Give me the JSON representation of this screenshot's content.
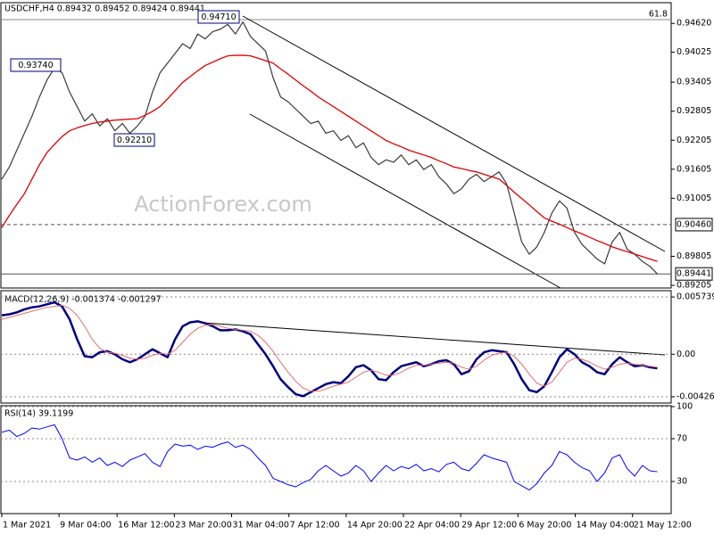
{
  "chart_data": [
    {
      "type": "line",
      "title": "USDCHF,H4  0.89432 0.89452 0.89424 0.89441",
      "annotations": [
        "0.94710",
        "0.93740",
        "0.92210",
        "61.8",
        "ActionForex.com"
      ],
      "xlim": [
        0,
        88
      ],
      "ylim": [
        0.8915,
        0.9503
      ],
      "yticks": [
        {
          "value": 0.9462,
          "label": "0.94620"
        },
        0.94025,
        0.93405,
        0.92805,
        0.92205,
        0.91605,
        0.91005,
        0.89805,
        0.89205
      ],
      "hlines": [
        {
          "value": 0.9046,
          "label": "0.90460",
          "style": "dashed"
        },
        {
          "value": 0.89441,
          "label": "0.89441",
          "style": "solid"
        }
      ],
      "series": [
        {
          "color": "#3a3a3a",
          "values": [
            0.914,
            0.9165,
            0.92,
            0.9235,
            0.927,
            0.931,
            0.9345,
            0.937,
            0.936,
            0.932,
            0.929,
            0.926,
            0.9275,
            0.925,
            0.9265,
            0.924,
            0.9255,
            0.9235,
            0.925,
            0.927,
            0.932,
            0.936,
            0.938,
            0.94,
            0.942,
            0.941,
            0.944,
            0.943,
            0.9445,
            0.945,
            0.946,
            0.944,
            0.9465,
            0.9435,
            0.942,
            0.9405,
            0.935,
            0.931,
            0.93,
            0.9285,
            0.927,
            0.9255,
            0.926,
            0.9235,
            0.924,
            0.922,
            0.923,
            0.9205,
            0.9215,
            0.9185,
            0.917,
            0.918,
            0.9175,
            0.919,
            0.917,
            0.918,
            0.916,
            0.917,
            0.9145,
            0.913,
            0.911,
            0.912,
            0.914,
            0.915,
            0.9135,
            0.9145,
            0.9155,
            0.913,
            0.907,
            0.901,
            0.8985,
            0.9,
            0.903,
            0.907,
            0.9095,
            0.908,
            0.903,
            0.9005,
            0.899,
            0.8975,
            0.8965,
            0.901,
            0.903,
            0.8995,
            0.8985,
            0.897,
            0.896,
            0.8944
          ]
        },
        {
          "color": "#e00000",
          "values": [
            0.904,
            0.9065,
            0.9088,
            0.911,
            0.914,
            0.917,
            0.9195,
            0.9212,
            0.9228,
            0.924,
            0.9246,
            0.9251,
            0.9255,
            0.9258,
            0.926,
            0.9262,
            0.9263,
            0.9264,
            0.9265,
            0.9272,
            0.928,
            0.929,
            0.9306,
            0.9323,
            0.934,
            0.9352,
            0.9364,
            0.9375,
            0.9382,
            0.9389,
            0.9395,
            0.9396,
            0.9396,
            0.9395,
            0.939,
            0.9385,
            0.938,
            0.9368,
            0.9357,
            0.9345,
            0.9333,
            0.9322,
            0.931,
            0.93,
            0.929,
            0.928,
            0.927,
            0.926,
            0.925,
            0.924,
            0.923,
            0.922,
            0.9213,
            0.9207,
            0.92,
            0.9195,
            0.919,
            0.9185,
            0.9178,
            0.9172,
            0.9165,
            0.9162,
            0.9158,
            0.9155,
            0.915,
            0.9145,
            0.914,
            0.9127,
            0.9113,
            0.91,
            0.9087,
            0.9073,
            0.906,
            0.9053,
            0.9047,
            0.904,
            0.9033,
            0.9027,
            0.902,
            0.9013,
            0.9007,
            0.9,
            0.8995,
            0.899,
            0.8985,
            0.898,
            0.8975,
            0.897
          ]
        }
      ]
    },
    {
      "type": "line",
      "title": "MACD(12,26,9) -0.001374 -0.001297",
      "grid": true,
      "xlim": [
        0,
        88
      ],
      "ylim": [
        -0.00489,
        0.00637
      ],
      "yticks": [
        0.005739,
        {
          "value": 0,
          "label": "0.00"
        },
        -0.004261
      ],
      "series": [
        {
          "color": "#000080",
          "values": [
            0.0039,
            0.004,
            0.0042,
            0.0045,
            0.0047,
            0.0048,
            0.005,
            0.0052,
            0.0048,
            0.0035,
            0.0015,
            -0.0002,
            -0.0003,
            0.0002,
            0.0003,
            0,
            -0.0005,
            -0.0008,
            -0.0005,
            0,
            0.0005,
            0.0001,
            -0.0003,
            0.0015,
            0.0028,
            0.0032,
            0.0033,
            0.0031,
            0.0028,
            0.0024,
            0.0024,
            0.0025,
            0.0023,
            0.002,
            0.001,
            0,
            -0.0012,
            -0.0025,
            -0.0033,
            -0.004,
            -0.0042,
            -0.0038,
            -0.0034,
            -0.003,
            -0.0028,
            -0.0029,
            -0.0022,
            -0.0013,
            -0.0011,
            -0.0016,
            -0.0025,
            -0.0026,
            -0.0018,
            -0.0012,
            -0.001,
            -0.0008,
            -0.0012,
            -0.001,
            -0.0007,
            -0.0006,
            -0.001,
            -0.002,
            -0.0017,
            -0.0005,
            0.0002,
            0.0004,
            0.0003,
            0.0002,
            -0.001,
            -0.0025,
            -0.0036,
            -0.0038,
            -0.0032,
            -0.0018,
            -0.0003,
            0.0005,
            0,
            -0.0008,
            -0.0012,
            -0.0018,
            -0.002,
            -0.001,
            -0.0003,
            -0.0008,
            -0.0012,
            -0.0011,
            -0.0013,
            -0.0014
          ]
        },
        {
          "color": "#e07070",
          "values": [
            0.0035,
            0.0037,
            0.0039,
            0.0041,
            0.0043,
            0.0045,
            0.0047,
            0.0048,
            0.0049,
            0.0046,
            0.0039,
            0.0028,
            0.0015,
            0.0006,
            0.0002,
            0.0001,
            -0.0001,
            -0.0004,
            -0.0005,
            -0.0004,
            -0.0001,
            0.0001,
            0,
            0.0004,
            0.0012,
            0.002,
            0.0026,
            0.0029,
            0.003,
            0.0028,
            0.0026,
            0.0025,
            0.0024,
            0.0023,
            0.0019,
            0.0012,
            0.0003,
            -0.0008,
            -0.0018,
            -0.0027,
            -0.0034,
            -0.0037,
            -0.0037,
            -0.0035,
            -0.0032,
            -0.003,
            -0.0028,
            -0.0023,
            -0.0018,
            -0.0016,
            -0.0018,
            -0.0021,
            -0.0021,
            -0.0018,
            -0.0014,
            -0.0011,
            -0.0011,
            -0.001,
            -0.0009,
            -0.0008,
            -0.0009,
            -0.0013,
            -0.0015,
            -0.0012,
            -0.0006,
            -0.0001,
            0.0001,
            0.0002,
            -0.0002,
            -0.001,
            -0.002,
            -0.0029,
            -0.0032,
            -0.0028,
            -0.0018,
            -0.0008,
            -0.0004,
            -0.0005,
            -0.0008,
            -0.0012,
            -0.0015,
            -0.0013,
            -0.001,
            -0.0009,
            -0.001,
            -0.0011,
            -0.0012,
            -0.0013
          ]
        }
      ]
    },
    {
      "type": "line",
      "title": "RSI(14) 39.1199",
      "grid": true,
      "xlim": [
        0,
        88
      ],
      "ylim": [
        0,
        100
      ],
      "yticks": [
        100,
        70,
        30
      ],
      "xticks": [
        {
          "value": 0,
          "label": "1 Mar 2021"
        },
        {
          "value": 7.6,
          "label": "9 Mar 04:00"
        },
        {
          "value": 15.3,
          "label": "16 Mar 12:00"
        },
        {
          "value": 22.9,
          "label": "23 Mar 20:00"
        },
        {
          "value": 30.5,
          "label": "31 Mar 04:00"
        },
        {
          "value": 38.1,
          "label": "7 Apr 12:00"
        },
        {
          "value": 45.7,
          "label": "14 Apr 20:00"
        },
        {
          "value": 53.3,
          "label": "22 Apr 04:00"
        },
        {
          "value": 60.9,
          "label": "29 Apr 12:00"
        },
        {
          "value": 68.5,
          "label": "6 May 20:00"
        },
        {
          "value": 76.1,
          "label": "14 May 04:00"
        },
        {
          "value": 83.7,
          "label": "21 May 12:00"
        }
      ],
      "series": [
        {
          "color": "#0000ff",
          "values": [
            76,
            78,
            72,
            75,
            80,
            79,
            81,
            83,
            70,
            52,
            50,
            53,
            48,
            52,
            45,
            48,
            44,
            50,
            53,
            56,
            48,
            44,
            58,
            65,
            63,
            64,
            60,
            63,
            62,
            65,
            67,
            62,
            64,
            60,
            52,
            45,
            33,
            30,
            27,
            25,
            29,
            32,
            40,
            45,
            40,
            35,
            38,
            45,
            40,
            30,
            38,
            45,
            40,
            44,
            42,
            46,
            40,
            42,
            39,
            46,
            48,
            42,
            40,
            47,
            55,
            52,
            50,
            48,
            30,
            26,
            22,
            28,
            38,
            45,
            58,
            55,
            48,
            43,
            40,
            30,
            38,
            52,
            55,
            42,
            35,
            45,
            40,
            39.1199
          ]
        }
      ]
    }
  ]
}
